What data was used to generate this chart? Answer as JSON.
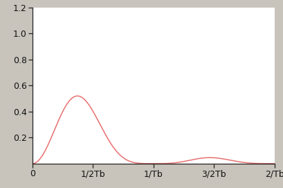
{
  "xlim": [
    0,
    2.0
  ],
  "ylim": [
    0,
    1.2
  ],
  "yticks": [
    0.2,
    0.4,
    0.6,
    0.8,
    1.0,
    1.2
  ],
  "ytick_labels": [
    "0.2",
    "0.4",
    "0.6",
    "0.8",
    "1.0",
    "1.2"
  ],
  "xtick_positions": [
    0,
    0.5,
    1.0,
    1.5,
    2.0
  ],
  "xtick_labels": [
    "0",
    "1/2Tb",
    "1/Tb",
    "3/2Tb",
    "2/Tb"
  ],
  "line_color": "#e87070",
  "background_color": "#c8c4bc",
  "axes_bg_color": "#ffffff",
  "line_width": 1.1,
  "tick_fontsize": 9
}
